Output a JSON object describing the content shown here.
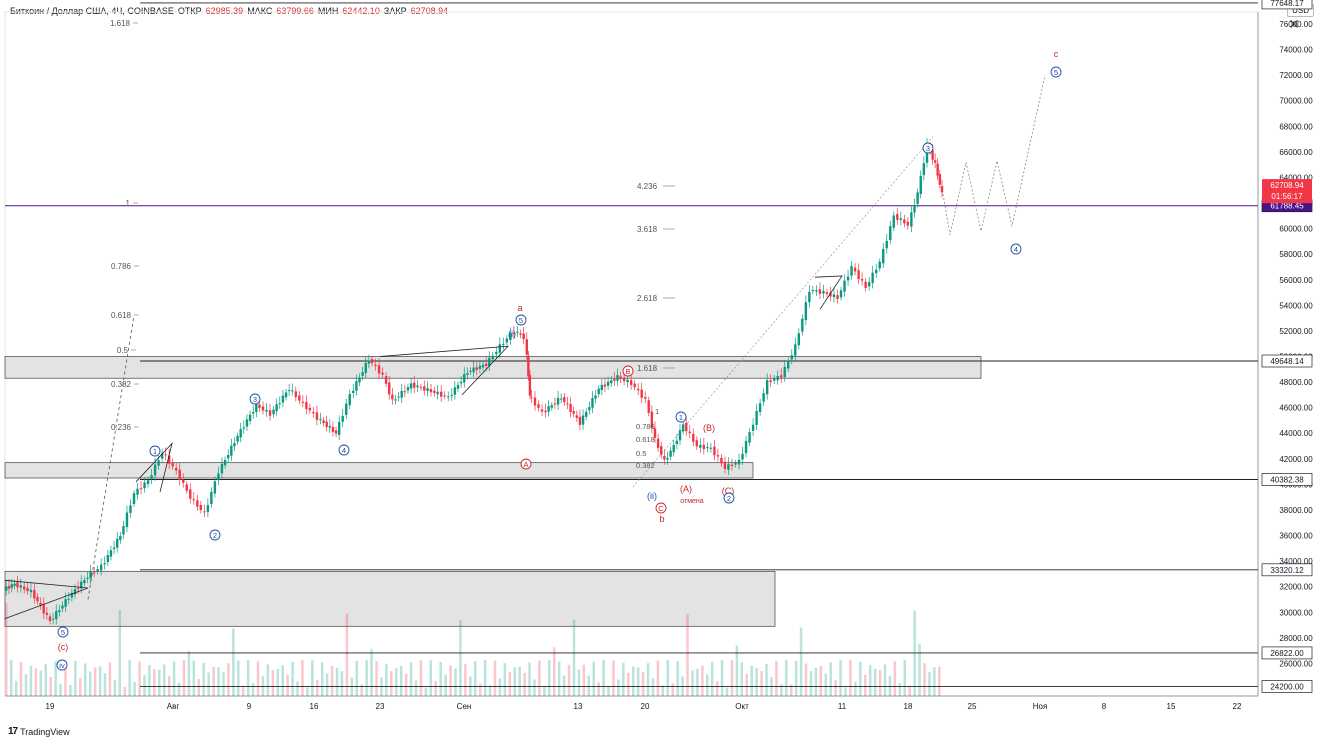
{
  "header": {
    "symbol": "Биткоин / Доллар США, 4Ч, COINBASE",
    "open_label": "ОТКР",
    "open": "62985.39",
    "high_label": "МАКС",
    "high": "63799.66",
    "low_label": "МИН",
    "low": "62442.10",
    "close_label": "ЗАКР",
    "close": "62708.94"
  },
  "currency": "USD",
  "footer": {
    "brand": "TradingView"
  },
  "colors": {
    "up": "#089981",
    "down": "#f23645",
    "zone_fill": "#dedede",
    "line_purple": "#4a148c",
    "wave_blue": "#1e4fa3",
    "wave_red": "#c62828"
  },
  "chart_data": {
    "type": "candlestick",
    "symbol": "BTCUSD",
    "timeframe": "4H",
    "ylim": [
      24000,
      78000
    ],
    "y_ticks": [
      26000,
      28000,
      30000,
      32000,
      34000,
      36000,
      38000,
      40000,
      42000,
      44000,
      46000,
      48000,
      50000,
      52000,
      54000,
      56000,
      58000,
      60000,
      62000,
      64000,
      66000,
      68000,
      70000,
      72000,
      74000,
      76000
    ],
    "x_ticks": [
      "19",
      "Авг",
      "9",
      "16",
      "23",
      "Сен",
      "13",
      "20",
      "Окт",
      "11",
      "18",
      "25",
      "Ноя",
      "8",
      "15",
      "22"
    ],
    "last_price": "62708.94",
    "countdown": "01:56:17",
    "horizontal_levels": [
      {
        "price": 77648.17,
        "label": "77648.17"
      },
      {
        "price": 61788.45,
        "label": "61788.45"
      },
      {
        "price": 49648.14,
        "label": "49648.14"
      },
      {
        "price": 40382.38,
        "label": "40382.38"
      },
      {
        "price": 33320.12,
        "label": "33320.12"
      },
      {
        "price": 26822.0,
        "label": "26822.00"
      },
      {
        "price": 24200.0,
        "label": "24200.00"
      }
    ],
    "zones": [
      {
        "from": 48300,
        "to": 50000
      },
      {
        "from": 40500,
        "to": 41700
      },
      {
        "from": 28900,
        "to": 33200
      }
    ],
    "fib_left": [
      "1.618",
      "1",
      "0.786",
      "0.618",
      "0.5",
      "0.382",
      "0.236"
    ],
    "fib_ext": [
      "4.236",
      "3.618",
      "2.618",
      "1.618"
    ],
    "fib_retr_small": [
      "1",
      "0.786",
      "0.618",
      "0.5",
      "0.382"
    ],
    "wave_labels": [
      "(c)",
      "iv",
      "5",
      "1",
      "2",
      "3",
      "4",
      "(i)",
      "5",
      "a",
      "A",
      "B",
      "(ii)",
      "C",
      "b",
      "1",
      "(B)",
      "(A)",
      "(C)",
      "2",
      "3",
      "4",
      "5",
      "c"
    ],
    "annotations": [
      "отмена"
    ],
    "price_path": [
      [
        0,
        31800
      ],
      [
        0.012,
        32200
      ],
      [
        0.03,
        31600
      ],
      [
        0.05,
        29300
      ],
      [
        0.07,
        31200
      ],
      [
        0.09,
        32800
      ],
      [
        0.105,
        33600
      ],
      [
        0.125,
        36000
      ],
      [
        0.14,
        39300
      ],
      [
        0.155,
        40300
      ],
      [
        0.17,
        42500
      ],
      [
        0.185,
        41000
      ],
      [
        0.2,
        39000
      ],
      [
        0.215,
        37700
      ],
      [
        0.23,
        41000
      ],
      [
        0.25,
        43800
      ],
      [
        0.27,
        46200
      ],
      [
        0.285,
        45500
      ],
      [
        0.305,
        47500
      ],
      [
        0.32,
        46300
      ],
      [
        0.335,
        45200
      ],
      [
        0.355,
        44000
      ],
      [
        0.37,
        47000
      ],
      [
        0.39,
        49800
      ],
      [
        0.405,
        48500
      ],
      [
        0.415,
        46500
      ],
      [
        0.435,
        47800
      ],
      [
        0.46,
        47200
      ],
      [
        0.475,
        46800
      ],
      [
        0.495,
        48800
      ],
      [
        0.515,
        49400
      ],
      [
        0.53,
        50800
      ],
      [
        0.545,
        52000
      ],
      [
        0.555,
        51500
      ],
      [
        0.56,
        47000
      ],
      [
        0.575,
        45600
      ],
      [
        0.595,
        46800
      ],
      [
        0.615,
        44800
      ],
      [
        0.635,
        47500
      ],
      [
        0.655,
        48400
      ],
      [
        0.67,
        47900
      ],
      [
        0.685,
        46600
      ],
      [
        0.695,
        43500
      ],
      [
        0.705,
        41800
      ],
      [
        0.715,
        43000
      ],
      [
        0.725,
        44700
      ],
      [
        0.74,
        43000
      ],
      [
        0.755,
        42800
      ],
      [
        0.77,
        41300
      ],
      [
        0.785,
        41800
      ],
      [
        0.8,
        44800
      ],
      [
        0.815,
        48000
      ],
      [
        0.83,
        48500
      ],
      [
        0.845,
        50800
      ],
      [
        0.86,
        55200
      ],
      [
        0.875,
        55000
      ],
      [
        0.89,
        54600
      ],
      [
        0.905,
        57000
      ],
      [
        0.92,
        55400
      ],
      [
        0.935,
        57400
      ],
      [
        0.95,
        61000
      ],
      [
        0.965,
        60300
      ],
      [
        0.975,
        62800
      ],
      [
        0.985,
        66500
      ],
      [
        0.993,
        65000
      ],
      [
        1.0,
        62700
      ]
    ],
    "projection_path": [
      [
        0,
        62700
      ],
      [
        1,
        59500
      ],
      [
        2,
        65200
      ],
      [
        3,
        59800
      ],
      [
        4,
        65300
      ],
      [
        5,
        60200
      ],
      [
        6,
        72000
      ]
    ]
  }
}
